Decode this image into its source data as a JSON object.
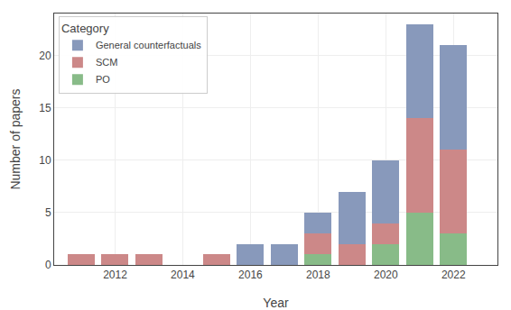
{
  "chart_data": {
    "type": "bar",
    "stacked": true,
    "xlabel": "Year",
    "ylabel": "Number of papers",
    "legend_title": "Category",
    "legend": "upper left",
    "grid": true,
    "x": [
      2011,
      2012,
      2013,
      2014,
      2015,
      2016,
      2017,
      2018,
      2019,
      2020,
      2021,
      2022
    ],
    "series": [
      {
        "name": "PO",
        "color": "#88bb88",
        "values": [
          0,
          0,
          0,
          0,
          0,
          0,
          0,
          1,
          0,
          2,
          5,
          3
        ]
      },
      {
        "name": "SCM",
        "color": "#cc8888",
        "values": [
          1,
          1,
          1,
          0,
          1,
          0,
          0,
          2,
          2,
          2,
          9,
          8
        ]
      },
      {
        "name": "General counterfactuals",
        "color": "#8899bb",
        "values": [
          0,
          0,
          0,
          0,
          0,
          2,
          2,
          2,
          5,
          6,
          9,
          10
        ]
      }
    ],
    "xlim": [
      2010.2,
      2023.3
    ],
    "xticks": [
      2012,
      2014,
      2016,
      2018,
      2020,
      2022
    ],
    "ylim": [
      0,
      24
    ],
    "yticks": [
      0,
      5,
      10,
      15,
      20
    ]
  }
}
